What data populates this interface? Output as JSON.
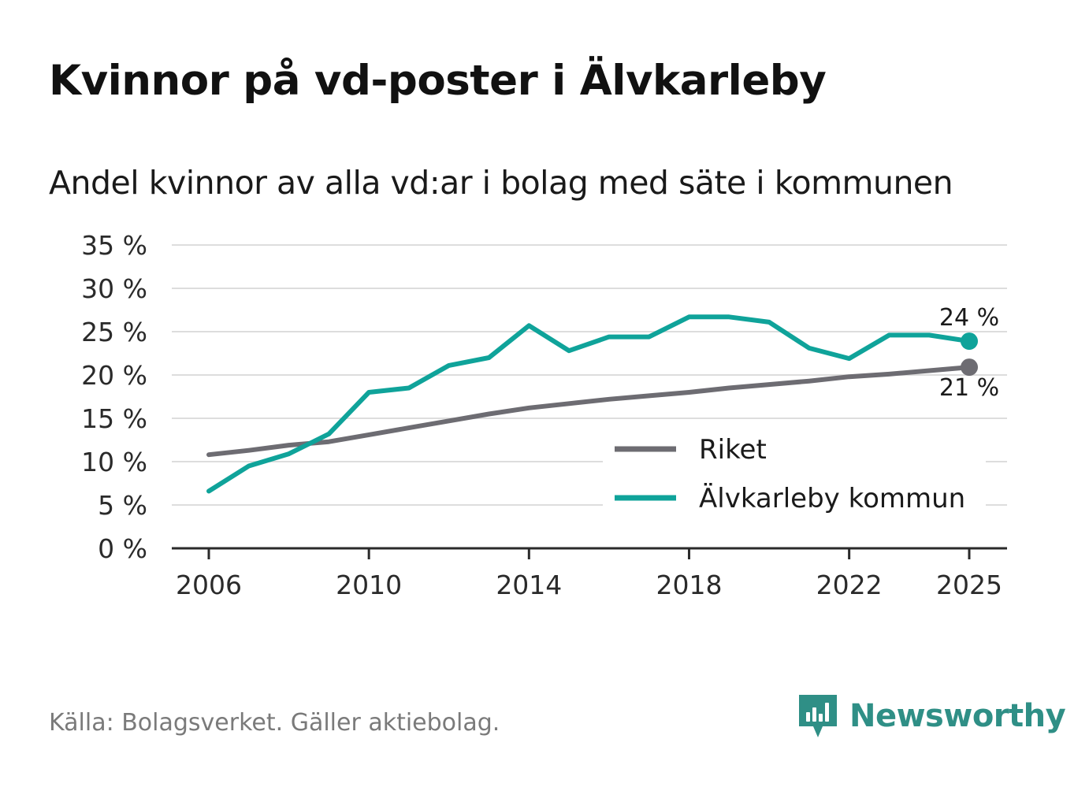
{
  "header": {
    "title": "Kvinnor på vd-poster i Älvkarleby",
    "subtitle": "Andel kvinnor av alla vd:ar i bolag med säte i kommunen"
  },
  "footer": {
    "source": "Källa: Bolagsverket. Gäller aktiebolag.",
    "brand": "Newsworthy"
  },
  "colors": {
    "riket": "#6d6c72",
    "kommun": "#0fa39a",
    "grid": "#dddddd",
    "axis": "#2a2a2a",
    "brand": "#2f8f86"
  },
  "chart_data": {
    "type": "line",
    "title": "Kvinnor på vd-poster i Älvkarleby",
    "subtitle": "Andel kvinnor av alla vd:ar i bolag med säte i kommunen",
    "xlabel": "",
    "ylabel": "",
    "x": [
      2006,
      2007,
      2008,
      2009,
      2010,
      2011,
      2012,
      2013,
      2014,
      2015,
      2016,
      2017,
      2018,
      2019,
      2020,
      2021,
      2022,
      2023,
      2024,
      2025
    ],
    "x_ticks": [
      2006,
      2010,
      2014,
      2018,
      2022,
      2025
    ],
    "x_tick_labels": [
      "2006",
      "2010",
      "2014",
      "2018",
      "2022",
      "2025"
    ],
    "ylim": [
      0,
      35
    ],
    "y_ticks": [
      0,
      5,
      10,
      15,
      20,
      25,
      30,
      35
    ],
    "y_tick_labels": [
      "0 %",
      "5 %",
      "10 %",
      "15 %",
      "20 %",
      "25 %",
      "30 %",
      "35 %"
    ],
    "grid": true,
    "legend_position": "bottom-right",
    "series": [
      {
        "name": "Riket",
        "color": "#6d6c72",
        "values": [
          10.8,
          11.3,
          11.9,
          12.3,
          13.1,
          13.9,
          14.7,
          15.5,
          16.2,
          16.7,
          17.2,
          17.6,
          18.0,
          18.5,
          18.9,
          19.3,
          19.8,
          20.1,
          20.5,
          20.9
        ],
        "end_label": "21 %"
      },
      {
        "name": "Älvkarleby kommun",
        "color": "#0fa39a",
        "values": [
          6.6,
          9.5,
          10.9,
          13.2,
          18.0,
          18.5,
          21.1,
          22.0,
          25.7,
          22.8,
          24.4,
          24.4,
          26.7,
          26.7,
          26.1,
          23.1,
          21.9,
          24.6,
          24.6,
          23.9
        ],
        "end_label": "24 %"
      }
    ]
  }
}
